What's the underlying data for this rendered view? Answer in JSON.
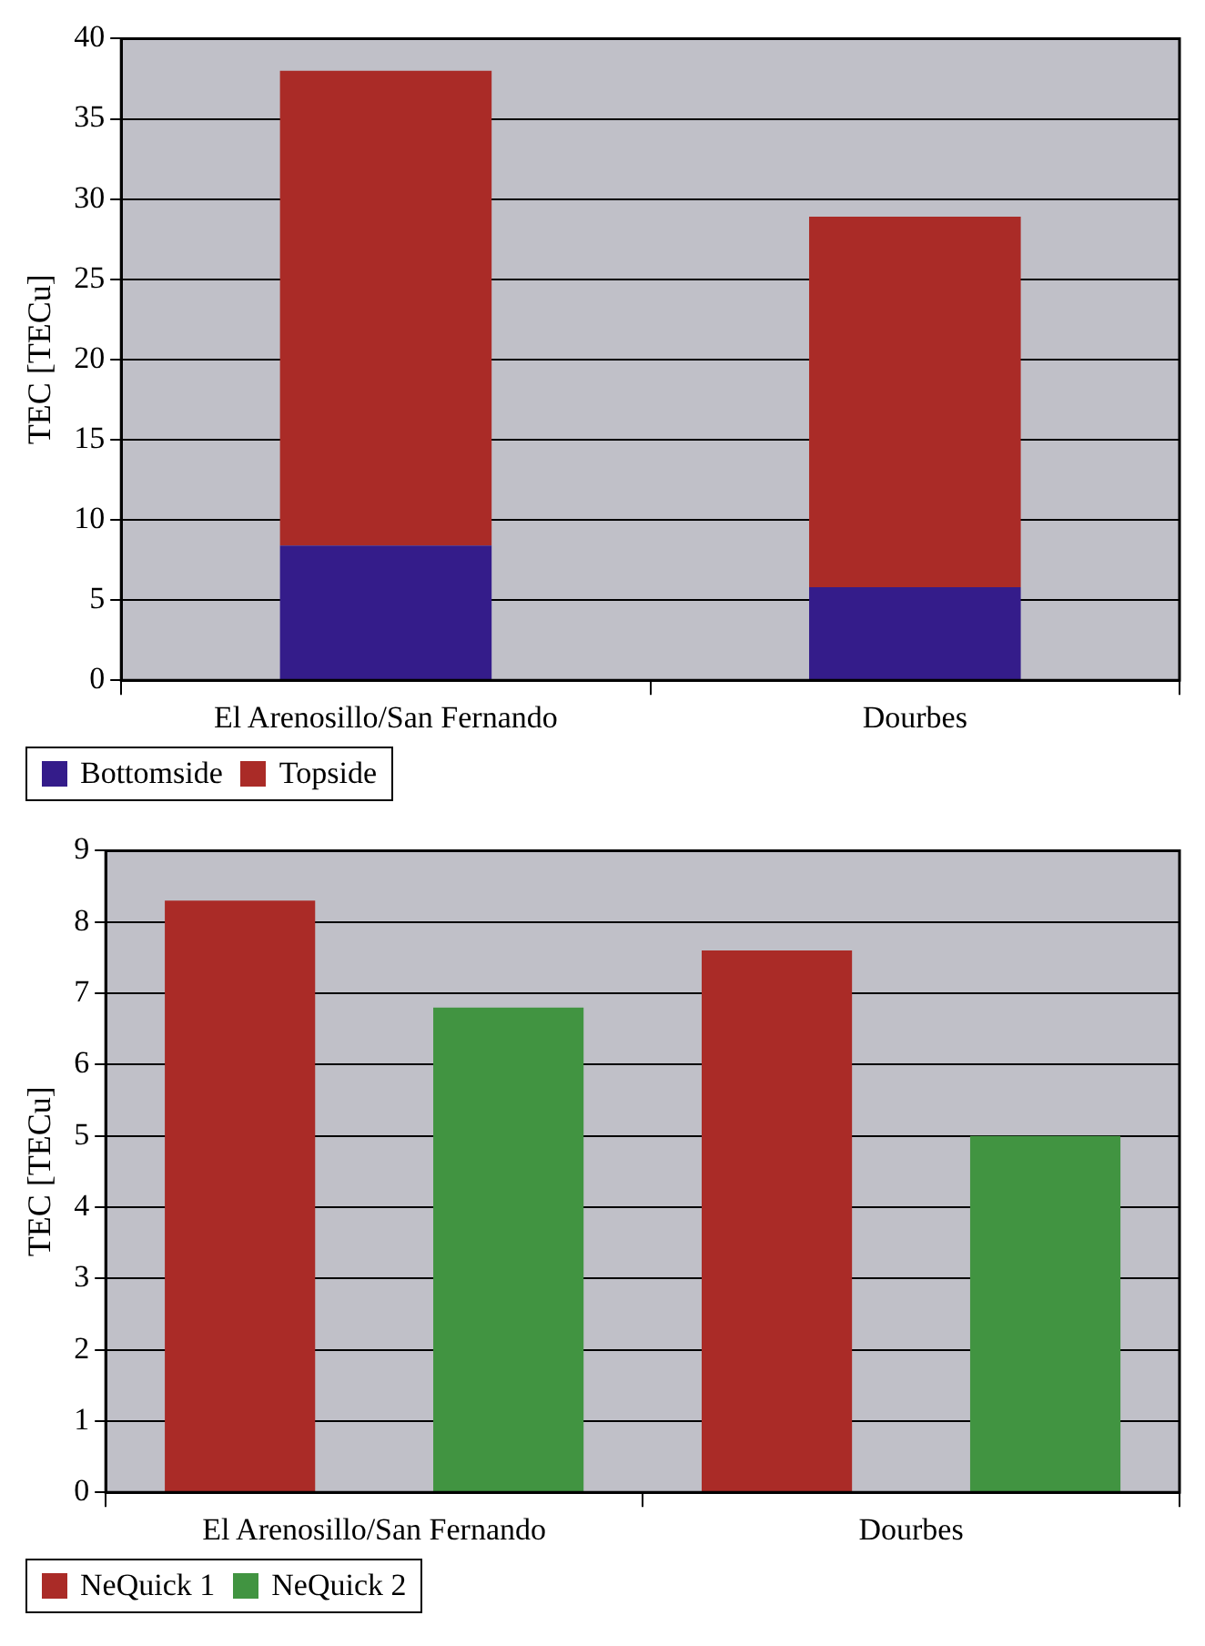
{
  "chart_data": [
    {
      "type": "bar",
      "ylabel": "TEC [TECu]",
      "categories": [
        "El Arenosillo/San Fernando",
        "Dourbes"
      ],
      "stacked": true,
      "series": [
        {
          "name": "Bottomside",
          "color": "#341c8a",
          "values": [
            8.4,
            5.8
          ]
        },
        {
          "name": "Topside",
          "color": "#aa2b27",
          "values": [
            29.6,
            23.1
          ]
        }
      ],
      "ylim": [
        0,
        40
      ],
      "yticks": [
        0,
        5,
        10,
        15,
        20,
        25,
        30,
        35,
        40
      ],
      "grid": "y",
      "legend": "bottom left"
    },
    {
      "type": "bar",
      "ylabel": "TEC [TECu]",
      "categories": [
        "El Arenosillo/San Fernando",
        "Dourbes"
      ],
      "series": [
        {
          "name": "NeQuick 1",
          "color": "#aa2b27",
          "values": [
            8.3,
            7.6
          ]
        },
        {
          "name": "NeQuick 2",
          "color": "#419441",
          "values": [
            6.8,
            5.0
          ]
        }
      ],
      "ylim": [
        0,
        9
      ],
      "yticks": [
        0,
        1,
        2,
        3,
        4,
        5,
        6,
        7,
        8,
        9
      ],
      "grid": "y",
      "legend": "bottom left"
    }
  ]
}
